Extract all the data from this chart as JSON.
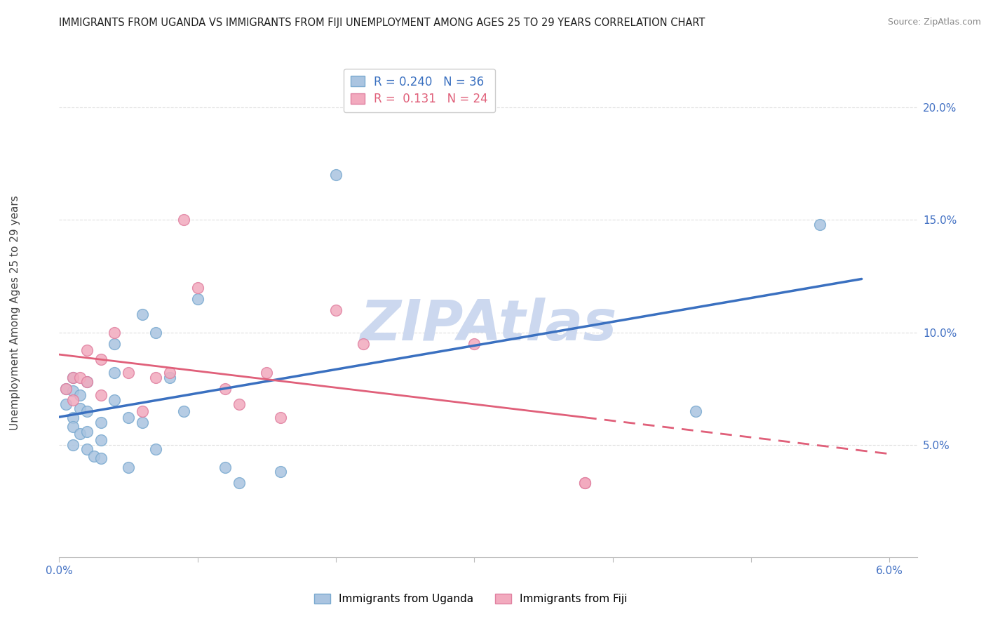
{
  "title": "IMMIGRANTS FROM UGANDA VS IMMIGRANTS FROM FIJI UNEMPLOYMENT AMONG AGES 25 TO 29 YEARS CORRELATION CHART",
  "source": "Source: ZipAtlas.com",
  "ylabel": "Unemployment Among Ages 25 to 29 years",
  "xlim": [
    0.0,
    0.062
  ],
  "ylim": [
    0.0,
    0.22
  ],
  "uganda_R": 0.24,
  "uganda_N": 36,
  "fiji_R": 0.131,
  "fiji_N": 24,
  "uganda_color": "#aac4e0",
  "fiji_color": "#f2aabe",
  "uganda_line_color": "#3a70c0",
  "fiji_line_color": "#e0607a",
  "watermark": "ZIPAtlas",
  "watermark_color": "#ccd8ef",
  "uganda_x": [
    0.0005,
    0.0005,
    0.001,
    0.001,
    0.001,
    0.001,
    0.001,
    0.0015,
    0.0015,
    0.0015,
    0.002,
    0.002,
    0.002,
    0.002,
    0.0025,
    0.003,
    0.003,
    0.003,
    0.004,
    0.004,
    0.004,
    0.005,
    0.005,
    0.006,
    0.006,
    0.007,
    0.007,
    0.008,
    0.009,
    0.01,
    0.012,
    0.013,
    0.016,
    0.02,
    0.046,
    0.055
  ],
  "uganda_y": [
    0.075,
    0.068,
    0.08,
    0.074,
    0.062,
    0.058,
    0.05,
    0.072,
    0.066,
    0.055,
    0.078,
    0.065,
    0.056,
    0.048,
    0.045,
    0.06,
    0.052,
    0.044,
    0.095,
    0.082,
    0.07,
    0.062,
    0.04,
    0.108,
    0.06,
    0.1,
    0.048,
    0.08,
    0.065,
    0.115,
    0.04,
    0.033,
    0.038,
    0.17,
    0.065,
    0.148
  ],
  "fiji_x": [
    0.0005,
    0.001,
    0.001,
    0.0015,
    0.002,
    0.002,
    0.003,
    0.003,
    0.004,
    0.005,
    0.006,
    0.007,
    0.008,
    0.009,
    0.01,
    0.012,
    0.013,
    0.015,
    0.016,
    0.02,
    0.022,
    0.03,
    0.038,
    0.038
  ],
  "fiji_y": [
    0.075,
    0.08,
    0.07,
    0.08,
    0.092,
    0.078,
    0.088,
    0.072,
    0.1,
    0.082,
    0.065,
    0.08,
    0.082,
    0.15,
    0.12,
    0.075,
    0.068,
    0.082,
    0.062,
    0.11,
    0.095,
    0.095,
    0.033,
    0.033
  ],
  "background_color": "#ffffff",
  "grid_color": "#d8d8d8",
  "tick_color": "#4472c4"
}
